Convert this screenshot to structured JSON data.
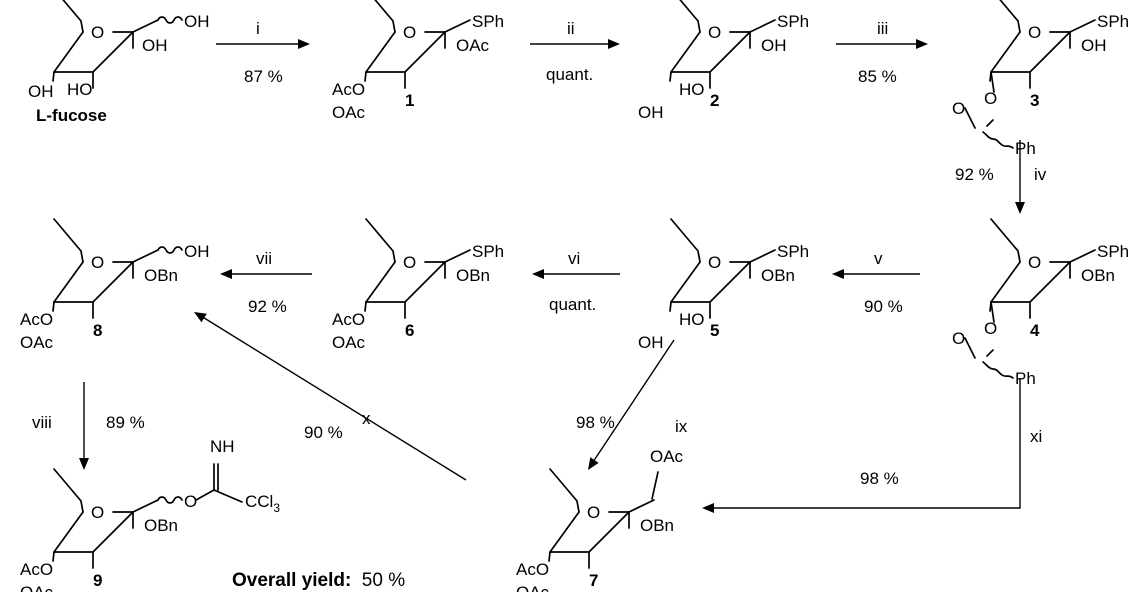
{
  "compounds": {
    "fucose": {
      "name": "L-fucose",
      "substituents": [
        "OH",
        "OH",
        "HO",
        "OH"
      ]
    },
    "c1": {
      "num": "1",
      "substituents": [
        "SPh",
        "OAc",
        "AcO",
        "OAc"
      ]
    },
    "c2": {
      "num": "2",
      "substituents": [
        "SPh",
        "OH",
        "HO",
        "OH"
      ]
    },
    "c3": {
      "num": "3",
      "substituents": [
        "SPh",
        "OH",
        "O",
        "O",
        "Ph"
      ]
    },
    "c4": {
      "num": "4",
      "substituents": [
        "SPh",
        "OBn",
        "O",
        "O",
        "Ph"
      ]
    },
    "c5": {
      "num": "5",
      "substituents": [
        "SPh",
        "OBn",
        "HO",
        "OH"
      ]
    },
    "c6": {
      "num": "6",
      "substituents": [
        "SPh",
        "OBn",
        "AcO",
        "OAc"
      ]
    },
    "c7": {
      "num": "7",
      "substituents": [
        "OAc",
        "OBn",
        "AcO",
        "OAc"
      ]
    },
    "c8": {
      "num": "8",
      "substituents": [
        "OH",
        "OBn",
        "AcO",
        "OAc"
      ]
    },
    "c9": {
      "num": "9",
      "substituents": [
        "NH",
        "O",
        "CCl3",
        "OBn",
        "AcO",
        "OAc"
      ]
    }
  },
  "steps": {
    "i": {
      "label": "i",
      "yield": "87 %"
    },
    "ii": {
      "label": "ii",
      "yield": "quant."
    },
    "iii": {
      "label": "iii",
      "yield": "85 %"
    },
    "iv": {
      "label": "iv",
      "yield": "92 %"
    },
    "v": {
      "label": "v",
      "yield": "90 %"
    },
    "vi": {
      "label": "vi",
      "yield": "quant."
    },
    "vii": {
      "label": "vii",
      "yield": "92 %"
    },
    "viii": {
      "label": "viii",
      "yield": "89 %"
    },
    "ix": {
      "label": "ix",
      "yield": "98 %"
    },
    "x": {
      "label": "x",
      "yield": "90 %"
    },
    "xi": {
      "label": "xi",
      "yield": "98 %"
    }
  },
  "overall": {
    "label": "Overall yield:",
    "value": "50 %"
  }
}
